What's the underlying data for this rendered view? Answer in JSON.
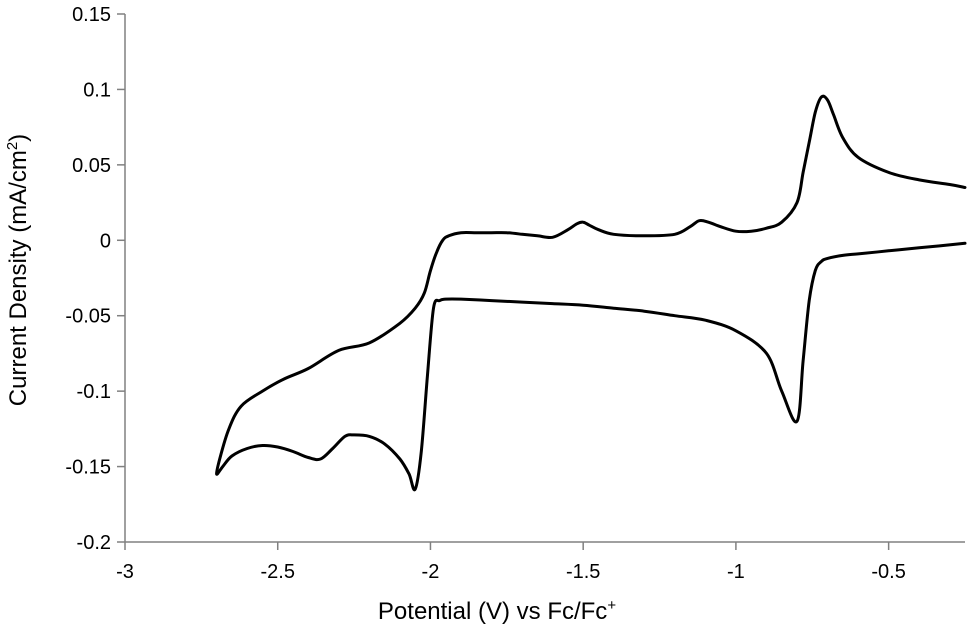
{
  "chart_data": {
    "type": "line",
    "title": "",
    "xlabel_main": "Potential (V) vs Fc/Fc",
    "xlabel_sup": "+",
    "ylabel_main": "Current Density (mA/cm",
    "ylabel_sup": "2",
    "ylabel_close": ")",
    "xlim": [
      -3,
      -0.25
    ],
    "ylim": [
      -0.2,
      0.15
    ],
    "x_ticks": [
      -3,
      -2.5,
      -2,
      -1.5,
      -1,
      -0.5
    ],
    "x_tick_labels": [
      "-3",
      "-2.5",
      "-2",
      "-1.5",
      "-1",
      "-0.5"
    ],
    "y_ticks": [
      -0.2,
      -0.15,
      -0.1,
      -0.05,
      0,
      0.05,
      0.1,
      0.15
    ],
    "y_tick_labels": [
      "-0.2",
      "-0.15",
      "-0.1",
      "-0.05",
      "0",
      "0.05",
      "0.1",
      "0.15"
    ],
    "grid": false,
    "legend": "none",
    "line_color": "#000000",
    "series": [
      {
        "x": [
          -0.25,
          -0.4,
          -0.5,
          -0.6,
          -0.65,
          -0.7,
          -0.72,
          -0.74,
          -0.76,
          -0.78,
          -0.8,
          -0.85,
          -0.9,
          -1.0,
          -1.1,
          -1.2,
          -1.3,
          -1.4,
          -1.5,
          -1.6,
          -1.7,
          -1.8,
          -1.9,
          -1.95,
          -1.97,
          -1.99,
          -2.01,
          -2.03,
          -2.05,
          -2.07,
          -2.1,
          -2.15,
          -2.2,
          -2.25,
          -2.28,
          -2.32,
          -2.36,
          -2.4,
          -2.45,
          -2.5,
          -2.55,
          -2.6,
          -2.65,
          -2.68,
          -2.7,
          -2.69,
          -2.66,
          -2.62,
          -2.55,
          -2.48,
          -2.4,
          -2.3,
          -2.2,
          -2.1,
          -2.05,
          -2.02,
          -2.0,
          -1.98,
          -1.96,
          -1.94,
          -1.9,
          -1.85,
          -1.8,
          -1.75,
          -1.7,
          -1.65,
          -1.6,
          -1.55,
          -1.52,
          -1.5,
          -1.48,
          -1.45,
          -1.4,
          -1.3,
          -1.2,
          -1.15,
          -1.12,
          -1.09,
          -1.05,
          -1.0,
          -0.95,
          -0.9,
          -0.85,
          -0.8,
          -0.78,
          -0.76,
          -0.74,
          -0.72,
          -0.7,
          -0.68,
          -0.65,
          -0.6,
          -0.5,
          -0.4,
          -0.3,
          -0.25
        ],
        "y": [
          -0.002,
          -0.005,
          -0.007,
          -0.009,
          -0.01,
          -0.012,
          -0.014,
          -0.02,
          -0.04,
          -0.08,
          -0.12,
          -0.1,
          -0.075,
          -0.06,
          -0.053,
          -0.05,
          -0.047,
          -0.045,
          -0.043,
          -0.042,
          -0.041,
          -0.04,
          -0.039,
          -0.039,
          -0.04,
          -0.045,
          -0.09,
          -0.14,
          -0.165,
          -0.155,
          -0.145,
          -0.135,
          -0.13,
          -0.129,
          -0.13,
          -0.138,
          -0.145,
          -0.144,
          -0.14,
          -0.137,
          -0.136,
          -0.138,
          -0.143,
          -0.15,
          -0.155,
          -0.145,
          -0.125,
          -0.11,
          -0.1,
          -0.092,
          -0.085,
          -0.073,
          -0.068,
          -0.055,
          -0.045,
          -0.035,
          -0.02,
          -0.008,
          0.0,
          0.003,
          0.005,
          0.005,
          0.005,
          0.005,
          0.004,
          0.003,
          0.002,
          0.007,
          0.011,
          0.012,
          0.01,
          0.007,
          0.004,
          0.003,
          0.004,
          0.009,
          0.013,
          0.012,
          0.009,
          0.006,
          0.006,
          0.008,
          0.012,
          0.025,
          0.045,
          0.065,
          0.085,
          0.095,
          0.093,
          0.083,
          0.068,
          0.055,
          0.045,
          0.04,
          0.037,
          0.035
        ]
      }
    ]
  }
}
